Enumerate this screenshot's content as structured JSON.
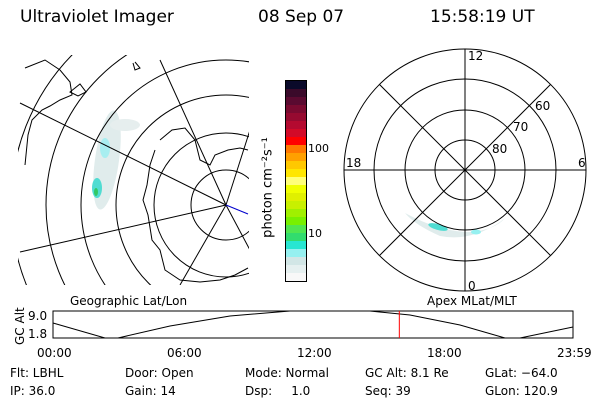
{
  "header": {
    "instrument": "Ultraviolet Imager",
    "date": "08 Sep 07",
    "time": "15:58:19 UT"
  },
  "left_map": {
    "label": "Geographic Lat/Lon"
  },
  "right_map": {
    "label": "Apex MLat/MLT",
    "mlt_labels": [
      "12",
      "18",
      "6",
      "0"
    ],
    "lat_labels": [
      "80",
      "70",
      "60"
    ]
  },
  "colorbar": {
    "unit_label": "photon cm⁻²s⁻¹",
    "ticks": [
      "100",
      "10"
    ],
    "colors": [
      "#0a0a2a",
      "#3a0a2a",
      "#5a0a30",
      "#7a0a30",
      "#960a30",
      "#b40a30",
      "#d20a28",
      "#ff0000",
      "#ff7800",
      "#ffa000",
      "#ffc800",
      "#ffe600",
      "#ffff78",
      "#f0ff00",
      "#e0f000",
      "#c8f000",
      "#a0f000",
      "#78f000",
      "#50e650",
      "#32dc6e",
      "#28e6d2",
      "#96f0f0",
      "#d2e6e6",
      "#e6f0f0",
      "#f8f8f8"
    ]
  },
  "altitude_plot": {
    "ylabel": "GC Alt",
    "y_ticks": [
      "9.0",
      "1.8"
    ],
    "x_ticks": [
      "00:00",
      "06:00",
      "12:00",
      "18:00",
      "23:59"
    ],
    "current_time_fraction": 0.666,
    "marker_color": "#ff0000"
  },
  "info": {
    "row1": [
      "Flt: LBHL",
      "Door: Open",
      "Mode: Normal",
      "GC Alt: 8.1 Re",
      "GLat: −64.0"
    ],
    "row2": [
      "IP: 36.0",
      "Gain: 14",
      "Dsp:     1.0",
      "Seq: 39",
      "GLon: 120.9"
    ]
  }
}
